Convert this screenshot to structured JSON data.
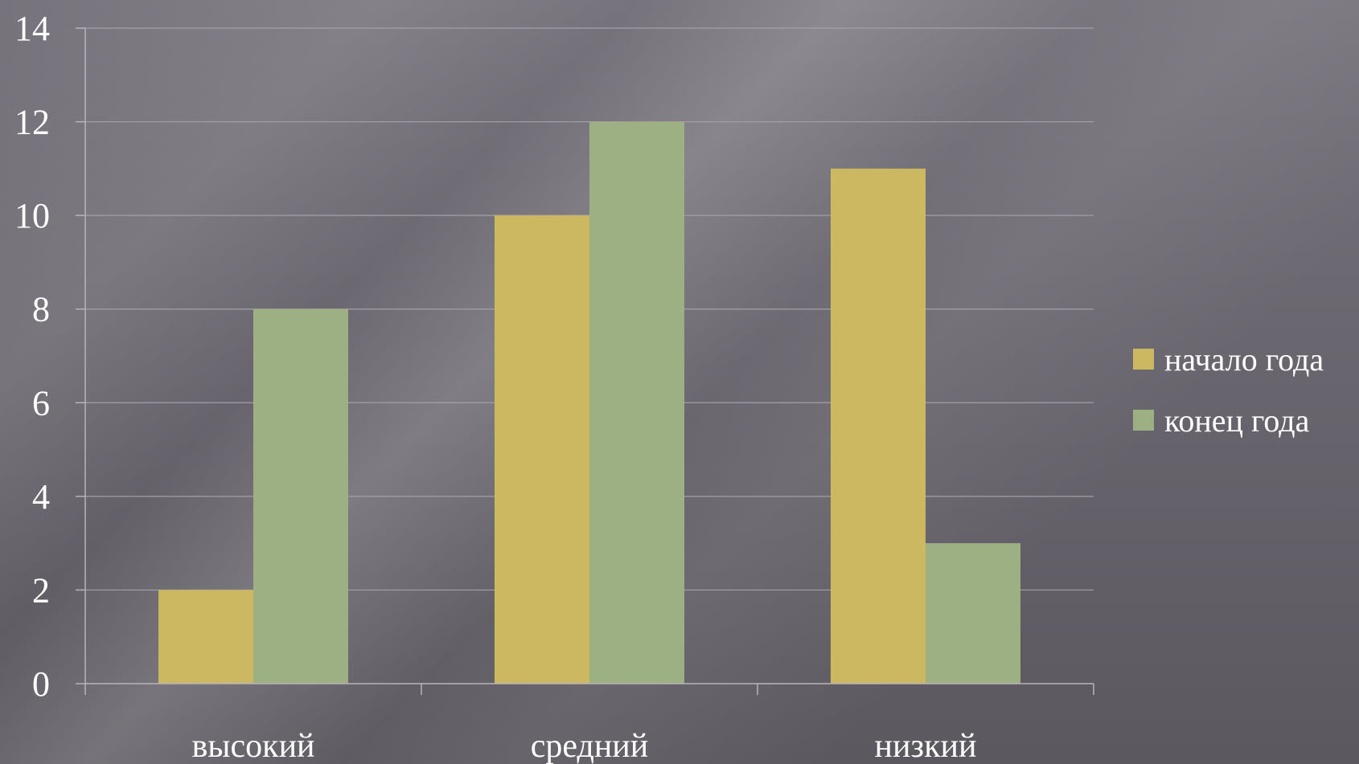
{
  "chart_data": {
    "type": "bar",
    "categories": [
      "высокий",
      "средний",
      "низкий"
    ],
    "series": [
      {
        "name": "начало года",
        "values": [
          2,
          10,
          11
        ],
        "color": "#cdb862"
      },
      {
        "name": "конец года",
        "values": [
          8,
          12,
          3
        ],
        "color": "#9cb083"
      }
    ],
    "y_ticks": [
      "0",
      "2",
      "4",
      "6",
      "8",
      "10",
      "12",
      "14"
    ],
    "ylim": [
      0,
      14
    ],
    "grid": true,
    "legend_position": "right",
    "colors": {
      "gridline": "#a3a0a8",
      "axis": "#b7b4bb"
    }
  }
}
